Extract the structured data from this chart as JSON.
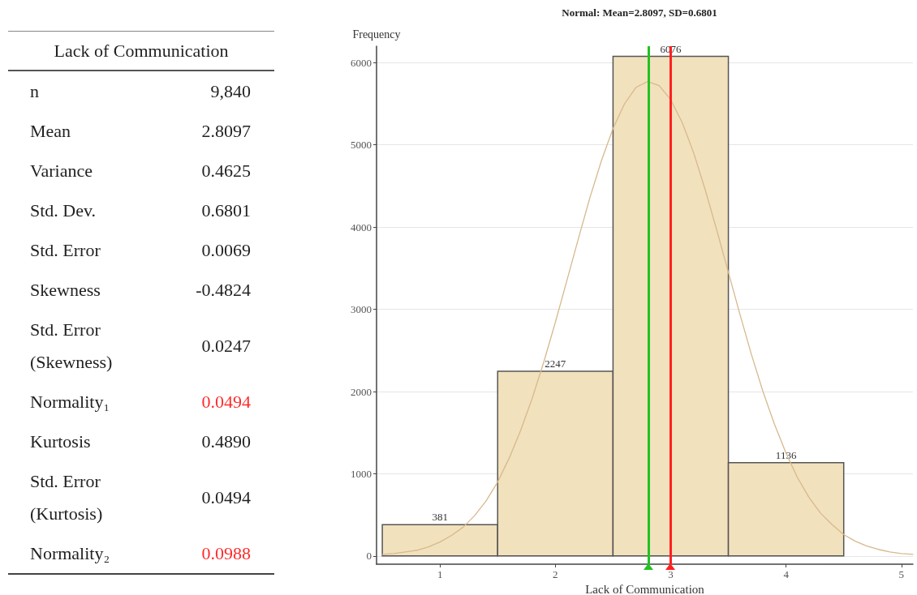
{
  "chart_data": [
    {
      "type": "other",
      "title": "Lack of Communication",
      "categories": [
        "n",
        "Mean",
        "Variance",
        "Std. Dev.",
        "Std. Error",
        "Skewness",
        "Std. Error (Skewness)",
        "Normality₁",
        "Kurtosis",
        "Std. Error (Kurtosis)",
        "Normality₂"
      ],
      "value_labels": [
        "9,840",
        "2.8097",
        "0.4625",
        "0.6801",
        "0.0069",
        "-0.4824",
        "0.0247",
        "0.0494",
        "0.4890",
        "0.0494",
        "0.0988"
      ],
      "colors": [
        "#222222",
        "#222222",
        "#222222",
        "#222222",
        "#222222",
        "#222222",
        "#222222",
        "#ff2a2a",
        "#222222",
        "#222222",
        "#ff2a2a"
      ]
    },
    {
      "type": "histogram",
      "title": "Normal: Mean=2.8097, SD=0.6801",
      "xlabel": "Lack of Communication",
      "ylabel": "Frequency",
      "bins": [
        0.5,
        1.5,
        2.5,
        3.5,
        4.5
      ],
      "series": [
        {
          "type": "histogram",
          "values": [
            381,
            2247,
            6076,
            1136
          ],
          "value_labels": [
            "381",
            "2247",
            "6076",
            "1136"
          ],
          "color": "#f2e1bd"
        },
        {
          "type": "line",
          "color": "#d6b98c",
          "x": [
            0.5,
            0.6,
            0.7,
            0.8,
            0.9,
            1.0,
            1.1,
            1.2,
            1.3,
            1.4,
            1.5,
            1.6,
            1.7,
            1.8,
            1.9,
            2.0,
            2.1,
            2.2,
            2.3,
            2.4,
            2.5,
            2.6,
            2.7,
            2.8,
            2.9,
            3.0,
            3.1,
            3.2,
            3.3,
            3.4,
            3.5,
            3.6,
            3.7,
            3.8,
            3.9,
            4.0,
            4.1,
            4.2,
            4.3,
            4.4,
            4.5,
            4.6,
            4.7,
            4.8,
            4.9,
            5.0,
            5.1
          ],
          "values": [
            20,
            30,
            50,
            70,
            110,
            170,
            250,
            350,
            490,
            670,
            900,
            1190,
            1530,
            1920,
            2360,
            2840,
            3350,
            3860,
            4360,
            4810,
            5200,
            5500,
            5700,
            5770,
            5720,
            5550,
            5270,
            4900,
            4450,
            3960,
            3450,
            2940,
            2450,
            2000,
            1600,
            1250,
            950,
            710,
            520,
            380,
            260,
            180,
            120,
            80,
            50,
            30,
            20
          ]
        }
      ],
      "marker": "none",
      "xlim": [
        0.45,
        5.1
      ],
      "xticks": [
        1,
        2,
        3,
        4,
        5
      ],
      "ylim": [
        -100,
        6200
      ],
      "yticks": [
        0,
        1000,
        2000,
        3000,
        4000,
        5000,
        6000
      ],
      "grid": "y",
      "ref_lines": [
        {
          "axis": "x",
          "value": 2.8097,
          "color": "#22c322"
        },
        {
          "axis": "x",
          "value": 3,
          "color": "#ff2020"
        }
      ]
    }
  ]
}
